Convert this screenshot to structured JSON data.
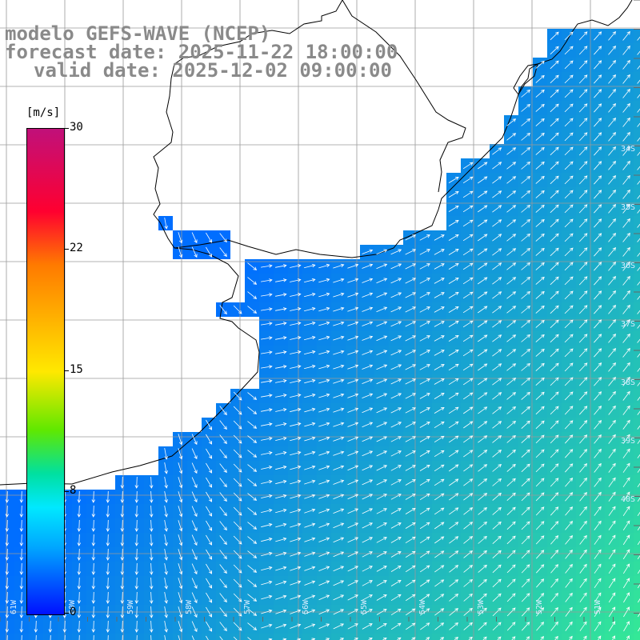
{
  "header": {
    "line1": "modelo GEFS-WAVE (NCEP)",
    "line2": "forecast date: 2025-11-22 18:00:00",
    "line3": "valid date: 2025-12-02 09:00:00"
  },
  "colorbar": {
    "unit": "[m/s]",
    "ticks": [
      "30",
      "22",
      "15",
      "8",
      "0"
    ],
    "colors": [
      "#c0107a",
      "#ff0030",
      "#ff7a00",
      "#ffe800",
      "#60e800",
      "#00e8ff",
      "#00a8ff",
      "#0010ff"
    ]
  },
  "map": {
    "land_color": "#ffffff",
    "coast_color": "#000000",
    "grid_color": "#9a9a9a",
    "arrow_color": "#ffffff",
    "lat_labels": [
      "34S",
      "35S",
      "36S",
      "37S",
      "38S",
      "39S",
      "40S"
    ],
    "lon_labels": [
      "61W",
      "60W",
      "59W",
      "58W",
      "57W",
      "56W",
      "55W",
      "54W",
      "53W",
      "52W",
      "51W"
    ]
  }
}
